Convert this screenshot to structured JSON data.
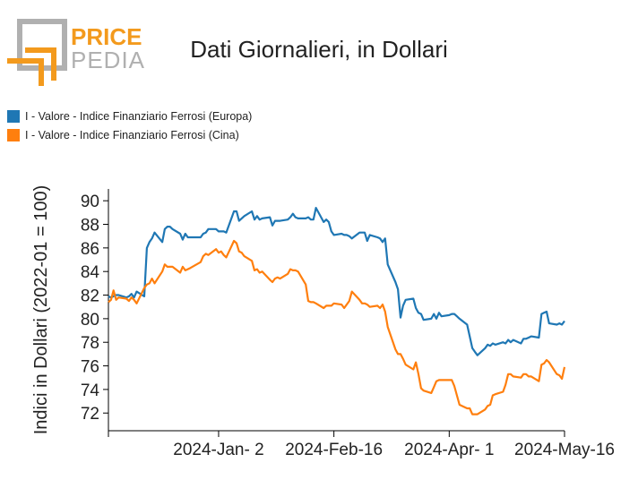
{
  "logo": {
    "line1": "PRICE",
    "line2": "PEDIA"
  },
  "title": "Dati Giornalieri, in Dollari",
  "colors": {
    "europa": "#1f77b4",
    "cina": "#ff7f0e",
    "logo_orange": "#f39a1d",
    "logo_gray": "#b0b0b0"
  },
  "legend": [
    {
      "label": "I - Valore - Indice Finanziario Ferrosi (Europa)",
      "color": "#1f77b4"
    },
    {
      "label": "I - Valore - Indice Finanziario Ferrosi (Cina)",
      "color": "#ff7f0e"
    }
  ],
  "chart_data": {
    "type": "line",
    "ylabel": "Indici in Dollari (2022-01 = 100)",
    "xlabel": "",
    "ylim": [
      70.5,
      91
    ],
    "yticks": [
      72,
      74,
      76,
      78,
      80,
      82,
      84,
      86,
      88,
      90
    ],
    "xlim": [
      "2023-11-20",
      "2024-05-16"
    ],
    "xticks": [
      {
        "date": "2024-01-02",
        "label": "2024-Jan- 2"
      },
      {
        "date": "2024-02-16",
        "label": "2024-Feb-16"
      },
      {
        "date": "2024-04-01",
        "label": "2024-Apr- 1"
      },
      {
        "date": "2024-05-16",
        "label": "2024-May-16"
      }
    ],
    "series": [
      {
        "name": "I - Valore - Indice Finanziario Ferrosi (Europa)",
        "color": "#1f77b4",
        "points": [
          [
            "2023-11-20",
            81.9
          ],
          [
            "2023-11-21",
            81.8
          ],
          [
            "2023-11-22",
            81.9
          ],
          [
            "2023-11-23",
            82.0
          ],
          [
            "2023-11-24",
            82.0
          ],
          [
            "2023-11-27",
            81.8
          ],
          [
            "2023-11-28",
            81.9
          ],
          [
            "2023-11-29",
            82.1
          ],
          [
            "2023-11-30",
            81.8
          ],
          [
            "2023-12-01",
            82.3
          ],
          [
            "2023-12-04",
            81.9
          ],
          [
            "2023-12-05",
            86.0
          ],
          [
            "2023-12-06",
            86.5
          ],
          [
            "2023-12-07",
            86.8
          ],
          [
            "2023-12-08",
            87.3
          ],
          [
            "2023-12-11",
            86.5
          ],
          [
            "2023-12-12",
            87.6
          ],
          [
            "2023-12-13",
            87.8
          ],
          [
            "2023-12-14",
            87.8
          ],
          [
            "2023-12-15",
            87.6
          ],
          [
            "2023-12-18",
            87.2
          ],
          [
            "2023-12-19",
            86.7
          ],
          [
            "2023-12-20",
            87.2
          ],
          [
            "2023-12-21",
            86.9
          ],
          [
            "2023-12-22",
            86.9
          ],
          [
            "2023-12-26",
            86.9
          ],
          [
            "2023-12-27",
            87.2
          ],
          [
            "2023-12-28",
            87.3
          ],
          [
            "2023-12-29",
            87.6
          ],
          [
            "2024-01-01",
            87.6
          ],
          [
            "2024-01-02",
            87.4
          ],
          [
            "2024-01-03",
            87.4
          ],
          [
            "2024-01-04",
            87.4
          ],
          [
            "2024-01-05",
            87.3
          ],
          [
            "2024-01-08",
            89.1
          ],
          [
            "2024-01-09",
            89.1
          ],
          [
            "2024-01-10",
            88.3
          ],
          [
            "2024-01-11",
            88.5
          ],
          [
            "2024-01-12",
            88.7
          ],
          [
            "2024-01-15",
            89.1
          ],
          [
            "2024-01-16",
            88.4
          ],
          [
            "2024-01-17",
            88.7
          ],
          [
            "2024-01-18",
            88.4
          ],
          [
            "2024-01-19",
            88.5
          ],
          [
            "2024-01-22",
            88.6
          ],
          [
            "2024-01-23",
            87.9
          ],
          [
            "2024-01-24",
            88.3
          ],
          [
            "2024-01-25",
            88.3
          ],
          [
            "2024-01-26",
            88.3
          ],
          [
            "2024-01-29",
            88.4
          ],
          [
            "2024-01-30",
            88.6
          ],
          [
            "2024-01-31",
            88.9
          ],
          [
            "2024-02-01",
            88.6
          ],
          [
            "2024-02-02",
            88.5
          ],
          [
            "2024-02-05",
            88.5
          ],
          [
            "2024-02-06",
            88.6
          ],
          [
            "2024-02-07",
            88.4
          ],
          [
            "2024-02-08",
            88.4
          ],
          [
            "2024-02-09",
            89.4
          ],
          [
            "2024-02-12",
            88.2
          ],
          [
            "2024-02-13",
            88.4
          ],
          [
            "2024-02-14",
            88.2
          ],
          [
            "2024-02-15",
            87.4
          ],
          [
            "2024-02-16",
            87.1
          ],
          [
            "2024-02-19",
            87.2
          ],
          [
            "2024-02-20",
            87.1
          ],
          [
            "2024-02-21",
            87.1
          ],
          [
            "2024-02-22",
            87.0
          ],
          [
            "2024-02-23",
            86.8
          ],
          [
            "2024-02-26",
            87.3
          ],
          [
            "2024-02-27",
            87.3
          ],
          [
            "2024-02-28",
            87.3
          ],
          [
            "2024-02-29",
            86.6
          ],
          [
            "2024-03-01",
            87.1
          ],
          [
            "2024-03-04",
            86.9
          ],
          [
            "2024-03-05",
            86.8
          ],
          [
            "2024-03-06",
            86.5
          ],
          [
            "2024-03-07",
            86.8
          ],
          [
            "2024-03-08",
            84.6
          ],
          [
            "2024-03-11",
            83.1
          ],
          [
            "2024-03-12",
            82.5
          ],
          [
            "2024-03-13",
            80.1
          ],
          [
            "2024-03-14",
            81.1
          ],
          [
            "2024-03-15",
            81.6
          ],
          [
            "2024-03-18",
            81.7
          ],
          [
            "2024-03-19",
            80.9
          ],
          [
            "2024-03-20",
            80.5
          ],
          [
            "2024-03-21",
            80.4
          ],
          [
            "2024-03-22",
            79.9
          ],
          [
            "2024-03-25",
            80.0
          ],
          [
            "2024-03-26",
            80.4
          ],
          [
            "2024-03-27",
            80.0
          ],
          [
            "2024-03-28",
            80.5
          ],
          [
            "2024-03-29",
            80.2
          ],
          [
            "2024-04-01",
            80.3
          ],
          [
            "2024-04-02",
            80.4
          ],
          [
            "2024-04-03",
            80.4
          ],
          [
            "2024-04-04",
            80.2
          ],
          [
            "2024-04-05",
            80.0
          ],
          [
            "2024-04-08",
            79.5
          ],
          [
            "2024-04-09",
            78.5
          ],
          [
            "2024-04-10",
            77.5
          ],
          [
            "2024-04-11",
            77.2
          ],
          [
            "2024-04-12",
            76.9
          ],
          [
            "2024-04-15",
            77.5
          ],
          [
            "2024-04-16",
            77.8
          ],
          [
            "2024-04-17",
            77.7
          ],
          [
            "2024-04-18",
            77.9
          ],
          [
            "2024-04-19",
            77.8
          ],
          [
            "2024-04-22",
            78.0
          ],
          [
            "2024-04-23",
            77.9
          ],
          [
            "2024-04-24",
            78.2
          ],
          [
            "2024-04-25",
            78.0
          ],
          [
            "2024-04-26",
            78.2
          ],
          [
            "2024-04-29",
            77.9
          ],
          [
            "2024-04-30",
            78.3
          ],
          [
            "2024-05-01",
            78.3
          ],
          [
            "2024-05-02",
            78.4
          ],
          [
            "2024-05-03",
            78.5
          ],
          [
            "2024-05-06",
            78.4
          ],
          [
            "2024-05-07",
            80.4
          ],
          [
            "2024-05-08",
            80.5
          ],
          [
            "2024-05-09",
            80.6
          ],
          [
            "2024-05-10",
            79.6
          ],
          [
            "2024-05-13",
            79.5
          ],
          [
            "2024-05-14",
            79.6
          ],
          [
            "2024-05-15",
            79.5
          ],
          [
            "2024-05-16",
            79.8
          ]
        ]
      },
      {
        "name": "I - Valore - Indice Finanziario Ferrosi (Cina)",
        "color": "#ff7f0e",
        "points": [
          [
            "2023-11-20",
            81.4
          ],
          [
            "2023-11-21",
            81.6
          ],
          [
            "2023-11-22",
            82.4
          ],
          [
            "2023-11-23",
            81.6
          ],
          [
            "2023-11-24",
            81.8
          ],
          [
            "2023-11-27",
            81.7
          ],
          [
            "2023-11-28",
            81.5
          ],
          [
            "2023-11-29",
            81.8
          ],
          [
            "2023-11-30",
            81.6
          ],
          [
            "2023-12-01",
            81.3
          ],
          [
            "2023-12-04",
            82.6
          ],
          [
            "2023-12-05",
            82.9
          ],
          [
            "2023-12-06",
            83.0
          ],
          [
            "2023-12-07",
            83.4
          ],
          [
            "2023-12-08",
            83.0
          ],
          [
            "2023-12-11",
            84.0
          ],
          [
            "2023-12-12",
            84.6
          ],
          [
            "2023-12-13",
            84.4
          ],
          [
            "2023-12-14",
            84.4
          ],
          [
            "2023-12-15",
            84.4
          ],
          [
            "2023-12-18",
            83.9
          ],
          [
            "2023-12-19",
            84.4
          ],
          [
            "2023-12-20",
            84.1
          ],
          [
            "2023-12-21",
            84.2
          ],
          [
            "2023-12-22",
            84.3
          ],
          [
            "2023-12-26",
            84.8
          ],
          [
            "2023-12-27",
            85.3
          ],
          [
            "2023-12-28",
            85.5
          ],
          [
            "2023-12-29",
            85.4
          ],
          [
            "2024-01-01",
            85.9
          ],
          [
            "2024-01-02",
            85.6
          ],
          [
            "2024-01-03",
            85.7
          ],
          [
            "2024-01-04",
            85.4
          ],
          [
            "2024-01-05",
            85.2
          ],
          [
            "2024-01-08",
            86.6
          ],
          [
            "2024-01-09",
            86.4
          ],
          [
            "2024-01-10",
            85.7
          ],
          [
            "2024-01-11",
            85.6
          ],
          [
            "2024-01-12",
            85.3
          ],
          [
            "2024-01-15",
            84.9
          ],
          [
            "2024-01-16",
            84.1
          ],
          [
            "2024-01-17",
            84.2
          ],
          [
            "2024-01-18",
            83.9
          ],
          [
            "2024-01-19",
            84.0
          ],
          [
            "2024-01-22",
            83.3
          ],
          [
            "2024-01-23",
            83.1
          ],
          [
            "2024-01-24",
            83.4
          ],
          [
            "2024-01-25",
            83.5
          ],
          [
            "2024-01-26",
            83.4
          ],
          [
            "2024-01-29",
            83.8
          ],
          [
            "2024-01-30",
            84.2
          ],
          [
            "2024-01-31",
            84.1
          ],
          [
            "2024-02-01",
            84.1
          ],
          [
            "2024-02-02",
            84.0
          ],
          [
            "2024-02-05",
            82.9
          ],
          [
            "2024-02-06",
            81.5
          ],
          [
            "2024-02-07",
            81.4
          ],
          [
            "2024-02-08",
            81.4
          ],
          [
            "2024-02-09",
            81.3
          ],
          [
            "2024-02-12",
            80.9
          ],
          [
            "2024-02-13",
            81.1
          ],
          [
            "2024-02-14",
            81.1
          ],
          [
            "2024-02-15",
            81.1
          ],
          [
            "2024-02-16",
            81.3
          ],
          [
            "2024-02-19",
            81.2
          ],
          [
            "2024-02-20",
            80.9
          ],
          [
            "2024-02-21",
            81.2
          ],
          [
            "2024-02-22",
            81.5
          ],
          [
            "2024-02-23",
            82.3
          ],
          [
            "2024-02-26",
            81.6
          ],
          [
            "2024-02-27",
            81.3
          ],
          [
            "2024-02-28",
            81.3
          ],
          [
            "2024-02-29",
            81.2
          ],
          [
            "2024-03-01",
            81.0
          ],
          [
            "2024-03-04",
            81.1
          ],
          [
            "2024-03-05",
            80.9
          ],
          [
            "2024-03-06",
            81.2
          ],
          [
            "2024-03-07",
            80.6
          ],
          [
            "2024-03-08",
            79.3
          ],
          [
            "2024-03-11",
            77.4
          ],
          [
            "2024-03-12",
            77.0
          ],
          [
            "2024-03-13",
            77.0
          ],
          [
            "2024-03-14",
            76.6
          ],
          [
            "2024-03-15",
            76.1
          ],
          [
            "2024-03-18",
            75.7
          ],
          [
            "2024-03-19",
            76.3
          ],
          [
            "2024-03-20",
            75.3
          ],
          [
            "2024-03-21",
            74.1
          ],
          [
            "2024-03-22",
            73.9
          ],
          [
            "2024-03-25",
            73.7
          ],
          [
            "2024-03-26",
            74.2
          ],
          [
            "2024-03-27",
            74.7
          ],
          [
            "2024-03-28",
            74.8
          ],
          [
            "2024-03-29",
            74.8
          ],
          [
            "2024-04-01",
            74.8
          ],
          [
            "2024-04-02",
            74.8
          ],
          [
            "2024-04-03",
            74.3
          ],
          [
            "2024-04-04",
            73.5
          ],
          [
            "2024-04-05",
            72.7
          ],
          [
            "2024-04-08",
            72.4
          ],
          [
            "2024-04-09",
            72.4
          ],
          [
            "2024-04-10",
            71.9
          ],
          [
            "2024-04-11",
            71.9
          ],
          [
            "2024-04-12",
            71.9
          ],
          [
            "2024-04-15",
            72.3
          ],
          [
            "2024-04-16",
            72.6
          ],
          [
            "2024-04-17",
            72.7
          ],
          [
            "2024-04-18",
            73.5
          ],
          [
            "2024-04-19",
            73.6
          ],
          [
            "2024-04-22",
            73.8
          ],
          [
            "2024-04-23",
            74.4
          ],
          [
            "2024-04-24",
            75.3
          ],
          [
            "2024-04-25",
            75.3
          ],
          [
            "2024-04-26",
            75.1
          ],
          [
            "2024-04-29",
            75.0
          ],
          [
            "2024-04-30",
            75.3
          ],
          [
            "2024-05-01",
            75.3
          ],
          [
            "2024-05-02",
            75.1
          ],
          [
            "2024-05-03",
            75.1
          ],
          [
            "2024-05-06",
            74.7
          ],
          [
            "2024-05-07",
            76.1
          ],
          [
            "2024-05-08",
            76.2
          ],
          [
            "2024-05-09",
            76.5
          ],
          [
            "2024-05-10",
            76.3
          ],
          [
            "2024-05-13",
            75.3
          ],
          [
            "2024-05-14",
            75.2
          ],
          [
            "2024-05-15",
            74.9
          ],
          [
            "2024-05-16",
            75.9
          ]
        ]
      }
    ]
  }
}
